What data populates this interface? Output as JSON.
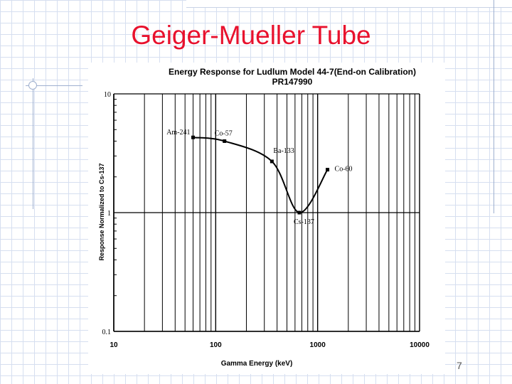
{
  "slide": {
    "title": "Geiger-Mueller Tube",
    "page_number": "7"
  },
  "chart_data": {
    "type": "line",
    "title": "Energy Response for Ludlum  Model 44-7(End-on Calibration)",
    "subtitle": "PR147990",
    "xlabel": "Gamma Energy (keV)",
    "ylabel": "Response Normalized to Cs-137",
    "x_scale": "log",
    "y_scale": "log",
    "xlim": [
      10,
      10000
    ],
    "ylim": [
      0.1,
      10
    ],
    "x_ticks": [
      "10",
      "100",
      "1000",
      "10000"
    ],
    "y_ticks": [
      "10",
      "1",
      "0.1"
    ],
    "grid": true,
    "series": [
      {
        "name": "Ludlum Model 44-7",
        "points": [
          {
            "label": "Am-241",
            "x": 60,
            "y": 4.3
          },
          {
            "label": "Co-57",
            "x": 122,
            "y": 4.0
          },
          {
            "label": "Ba-133",
            "x": 356,
            "y": 2.7
          },
          {
            "label": "Cs-137",
            "x": 662,
            "y": 1.0
          },
          {
            "label": "Co-60",
            "x": 1250,
            "y": 2.3
          }
        ]
      }
    ]
  }
}
